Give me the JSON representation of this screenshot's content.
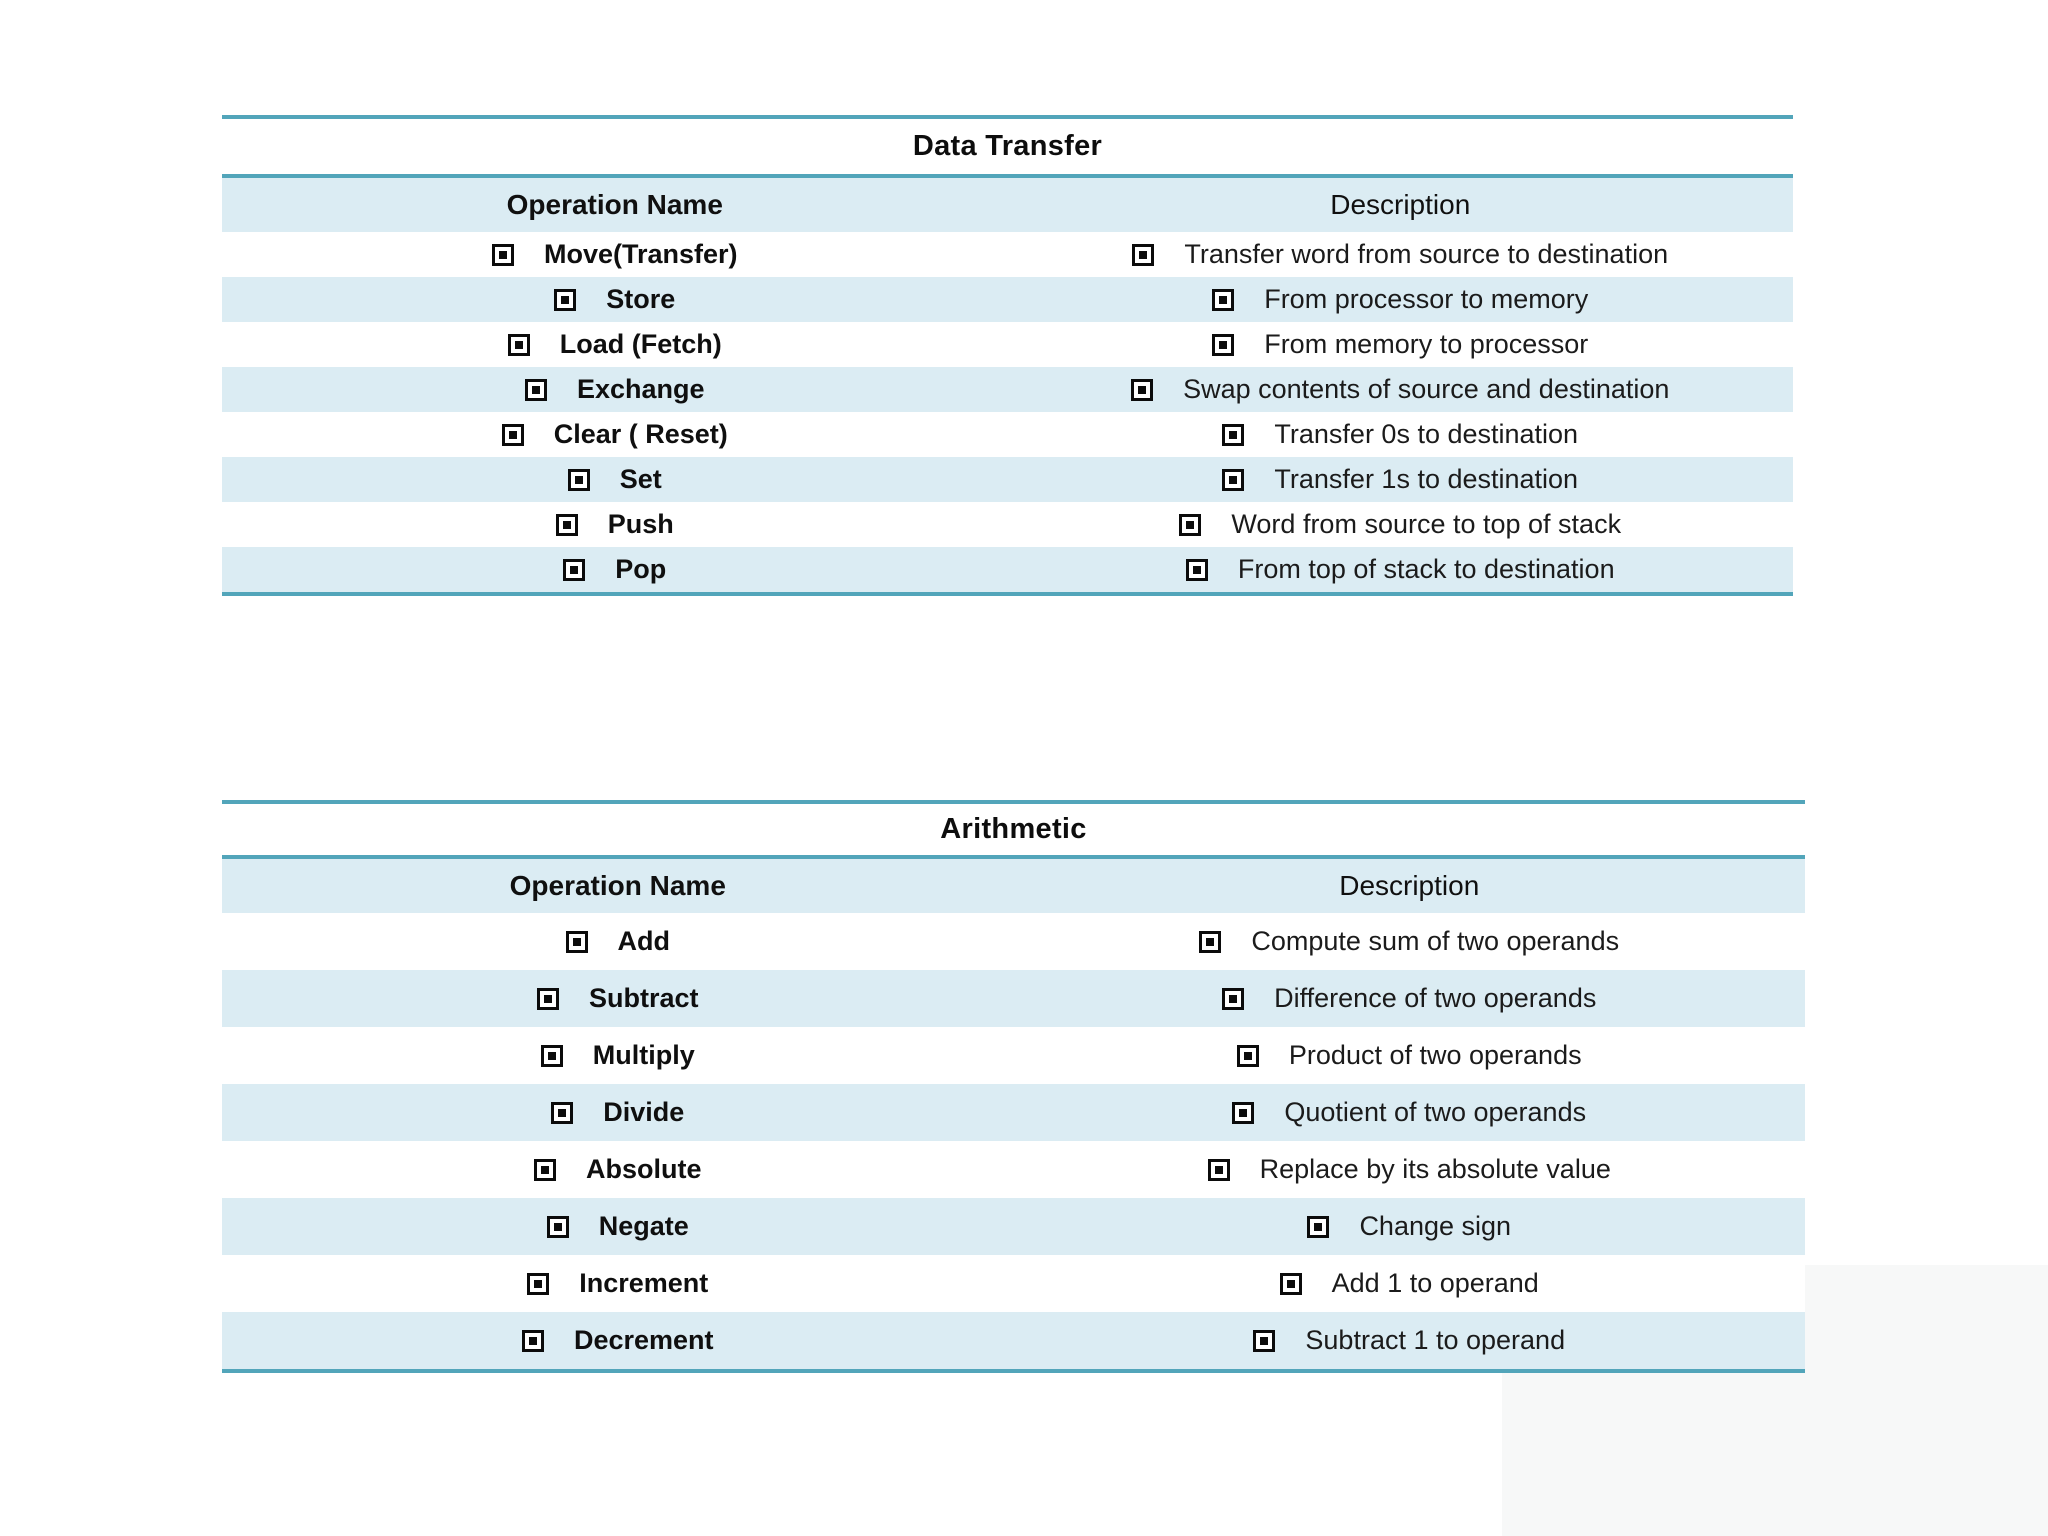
{
  "colors": {
    "rule_line": "#52a5ba",
    "band_fill": "#dbecf3",
    "row_fill": "#ffffff",
    "text": "#111111",
    "corner_shade": "#f7f8f8"
  },
  "bullet_icon": "white-square-containing-black-square",
  "tables": [
    {
      "title": "Data Transfer",
      "columns": [
        "Operation Name",
        "Description"
      ],
      "rows": [
        {
          "operation": "Move(Transfer)",
          "description": "Transfer word from source to destination"
        },
        {
          "operation": "Store",
          "description": "From processor to memory"
        },
        {
          "operation": "Load (Fetch)",
          "description": "From memory to processor"
        },
        {
          "operation": "Exchange",
          "description": "Swap contents of source and destination"
        },
        {
          "operation": "Clear ( Reset)",
          "description": "Transfer 0s to destination"
        },
        {
          "operation": "Set",
          "description": "Transfer 1s to destination"
        },
        {
          "operation": "Push",
          "description": "Word from source to top of stack"
        },
        {
          "operation": "Pop",
          "description": "From top of stack to destination"
        }
      ]
    },
    {
      "title": "Arithmetic",
      "columns": [
        "Operation Name",
        "Description"
      ],
      "rows": [
        {
          "operation": "Add",
          "description": "Compute sum of two operands"
        },
        {
          "operation": "Subtract",
          "description": "Difference of two operands"
        },
        {
          "operation": "Multiply",
          "description": "Product of two operands"
        },
        {
          "operation": "Divide",
          "description": "Quotient of two operands"
        },
        {
          "operation": "Absolute",
          "description": "Replace by its absolute value"
        },
        {
          "operation": "Negate",
          "description": "Change sign"
        },
        {
          "operation": "Increment",
          "description": "Add 1 to operand"
        },
        {
          "operation": "Decrement",
          "description": "Subtract 1 to operand"
        }
      ]
    }
  ]
}
